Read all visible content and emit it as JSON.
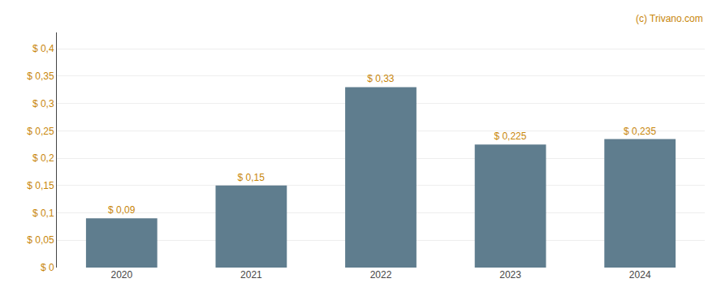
{
  "chart_data": {
    "type": "bar",
    "categories": [
      "2020",
      "2021",
      "2022",
      "2023",
      "2024"
    ],
    "values": [
      0.09,
      0.15,
      0.33,
      0.225,
      0.235
    ],
    "value_labels": [
      "$ 0,09",
      "$ 0,15",
      "$ 0,33",
      "$ 0,225",
      "$ 0,235"
    ],
    "data_labels": true,
    "color": "#5f7d8e",
    "ylim": [
      0,
      0.43
    ],
    "yticks": [
      {
        "value": 0,
        "label": "$ 0"
      },
      {
        "value": 0.05,
        "label": "$ 0,05"
      },
      {
        "value": 0.1,
        "label": "$ 0,1"
      },
      {
        "value": 0.15,
        "label": "$ 0,15"
      },
      {
        "value": 0.2,
        "label": "$ 0,2"
      },
      {
        "value": 0.25,
        "label": "$ 0,25"
      },
      {
        "value": 0.3,
        "label": "$ 0,3"
      },
      {
        "value": 0.35,
        "label": "$ 0,35"
      },
      {
        "value": 0.4,
        "label": "$ 0,4"
      }
    ],
    "grid": true,
    "annotations": [
      "(c) Trivano.com"
    ]
  }
}
